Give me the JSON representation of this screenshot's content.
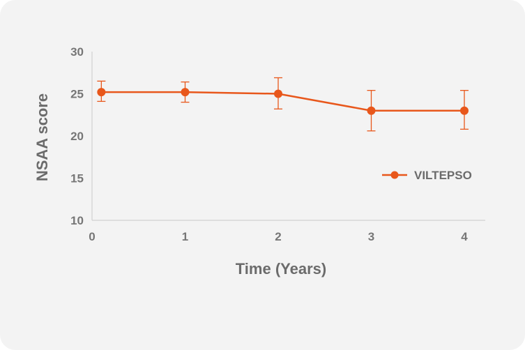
{
  "chart_data": {
    "type": "line",
    "xlabel": "Time (Years)",
    "ylabel": "NSAA score",
    "xlim": [
      0,
      4
    ],
    "ylim": [
      10,
      30
    ],
    "x_ticks": [
      "0",
      "1",
      "2",
      "3",
      "4"
    ],
    "y_ticks": [
      "10",
      "15",
      "20",
      "25",
      "30"
    ],
    "grid": false,
    "legend_position": "right",
    "series": [
      {
        "name": "VILTEPSO",
        "color": "#e8571b",
        "x": [
          0.1,
          1,
          2,
          3,
          4
        ],
        "y": [
          25.2,
          25.2,
          25.0,
          23.0,
          23.0
        ],
        "error_upper": [
          26.5,
          26.4,
          26.9,
          25.4,
          25.4
        ],
        "error_lower": [
          24.1,
          24.0,
          23.2,
          20.6,
          20.8
        ]
      }
    ]
  }
}
